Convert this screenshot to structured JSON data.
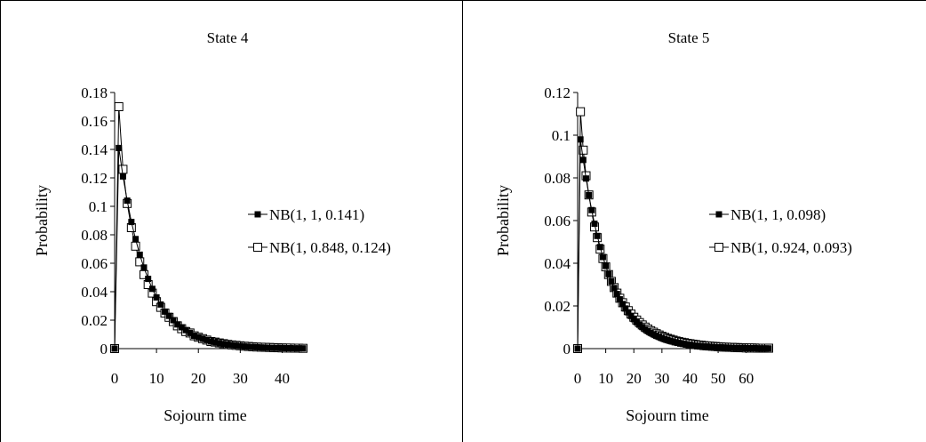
{
  "chart_data": [
    {
      "type": "line",
      "title": "State 4",
      "xlabel": "Sojourn time",
      "ylabel": "Probability",
      "xlim": [
        0,
        45
      ],
      "ylim": [
        0,
        0.18
      ],
      "xticks": [
        "0",
        "10",
        "20",
        "30",
        "40"
      ],
      "yticks": [
        "0",
        "0.02",
        "0.04",
        "0.06",
        "0.08",
        "0.1",
        "0.12",
        "0.14",
        "0.16",
        "0.18"
      ],
      "legend": "right",
      "grid": false,
      "series": [
        {
          "name": "NB(1, 1, 0.141)",
          "marker": "filled-square",
          "x": [
            0,
            1,
            2,
            3,
            4,
            5,
            6,
            7,
            8,
            9,
            10,
            11,
            12,
            13,
            14,
            15,
            16,
            17,
            18,
            19,
            20,
            21,
            22,
            23,
            24,
            25,
            26,
            27,
            28,
            29,
            30,
            31,
            32,
            33,
            34,
            35,
            36,
            37,
            38,
            39,
            40,
            41,
            42,
            43,
            44,
            45
          ],
          "y": [
            0,
            0.141,
            0.121,
            0.104,
            0.089,
            0.077,
            0.066,
            0.057,
            0.049,
            0.042,
            0.036,
            0.031,
            0.026,
            0.023,
            0.02,
            0.017,
            0.015,
            0.013,
            0.011,
            0.009,
            0.008,
            0.007,
            0.006,
            0.005,
            0.0044,
            0.0037,
            0.0032,
            0.0028,
            0.0024,
            0.0021,
            0.0018,
            0.0015,
            0.0013,
            0.0011,
            0.001,
            0.0008,
            0.0007,
            0.0006,
            0.0005,
            0.0005,
            0.0004,
            0.0003,
            0.0003,
            0.0002,
            0.0002,
            0.0002
          ]
        },
        {
          "name": "NB(1, 0.848, 0.124)",
          "marker": "open-square",
          "x": [
            0,
            1,
            2,
            3,
            4,
            5,
            6,
            7,
            8,
            9,
            10,
            11,
            12,
            13,
            14,
            15,
            16,
            17,
            18,
            19,
            20,
            21,
            22,
            23,
            24,
            25,
            26,
            27,
            28,
            29,
            30,
            31,
            32,
            33,
            34,
            35,
            36,
            37,
            38,
            39,
            40,
            41,
            42,
            43,
            44,
            45
          ],
          "y": [
            0,
            0.17,
            0.126,
            0.102,
            0.085,
            0.072,
            0.061,
            0.052,
            0.045,
            0.039,
            0.033,
            0.029,
            0.025,
            0.022,
            0.019,
            0.016,
            0.014,
            0.012,
            0.011,
            0.009,
            0.008,
            0.007,
            0.006,
            0.005,
            0.0046,
            0.004,
            0.0035,
            0.003,
            0.0026,
            0.0023,
            0.002,
            0.0017,
            0.0015,
            0.0013,
            0.0011,
            0.001,
            0.0009,
            0.0008,
            0.0007,
            0.0006,
            0.0005,
            0.0004,
            0.0004,
            0.0003,
            0.0003,
            0.0002
          ]
        }
      ]
    },
    {
      "type": "line",
      "title": "State 5",
      "xlabel": "Sojourn time",
      "ylabel": "Probability",
      "xlim": [
        0,
        68
      ],
      "ylim": [
        0,
        0.12
      ],
      "xticks": [
        "0",
        "10",
        "20",
        "30",
        "40",
        "50",
        "60"
      ],
      "yticks": [
        "0",
        "0.02",
        "0.04",
        "0.06",
        "0.08",
        "0.1",
        "0.12"
      ],
      "legend": "right",
      "grid": false,
      "series": [
        {
          "name": "NB(1, 1, 0.098)",
          "marker": "filled-square",
          "x": [
            0,
            1,
            2,
            3,
            4,
            5,
            6,
            7,
            8,
            9,
            10,
            11,
            12,
            13,
            14,
            15,
            16,
            17,
            18,
            19,
            20,
            21,
            22,
            23,
            24,
            25,
            26,
            27,
            28,
            29,
            30,
            31,
            32,
            33,
            34,
            35,
            36,
            37,
            38,
            39,
            40,
            41,
            42,
            43,
            44,
            45,
            46,
            47,
            48,
            49,
            50,
            51,
            52,
            53,
            54,
            55,
            56,
            57,
            58,
            59,
            60,
            61,
            62,
            63,
            64,
            65,
            66,
            67,
            68
          ],
          "y": [
            0,
            0.098,
            0.0884,
            0.0797,
            0.0719,
            0.0649,
            0.0585,
            0.0528,
            0.0476,
            0.0429,
            0.0387,
            0.0349,
            0.0315,
            0.0284,
            0.0256,
            0.0231,
            0.0209,
            0.0188,
            0.017,
            0.0153,
            0.0138,
            0.0124,
            0.0112,
            0.0101,
            0.0091,
            0.0082,
            0.0074,
            0.0067,
            0.006,
            0.0055,
            0.0049,
            0.0044,
            0.004,
            0.0036,
            0.0033,
            0.003,
            0.0027,
            0.0024,
            0.0022,
            0.0019,
            0.0018,
            0.0016,
            0.0014,
            0.0013,
            0.0012,
            0.0011,
            0.001,
            0.0009,
            0.0008,
            0.0007,
            0.0006,
            0.0006,
            0.0005,
            0.0005,
            0.0004,
            0.0004,
            0.0003,
            0.0003,
            0.0003,
            0.0003,
            0.0002,
            0.0002,
            0.0002,
            0.0002,
            0.0001,
            0.0001,
            0.0001,
            0.0001,
            0.0001
          ]
        },
        {
          "name": "NB(1, 0.924, 0.093)",
          "marker": "open-square",
          "x": [
            0,
            1,
            2,
            3,
            4,
            5,
            6,
            7,
            8,
            9,
            10,
            11,
            12,
            13,
            14,
            15,
            16,
            17,
            18,
            19,
            20,
            21,
            22,
            23,
            24,
            25,
            26,
            27,
            28,
            29,
            30,
            31,
            32,
            33,
            34,
            35,
            36,
            37,
            38,
            39,
            40,
            41,
            42,
            43,
            44,
            45,
            46,
            47,
            48,
            49,
            50,
            51,
            52,
            53,
            54,
            55,
            56,
            57,
            58,
            59,
            60,
            61,
            62,
            63,
            64,
            65,
            66,
            67,
            68
          ],
          "y": [
            0,
            0.111,
            0.093,
            0.081,
            0.072,
            0.064,
            0.057,
            0.052,
            0.0466,
            0.0422,
            0.0383,
            0.0347,
            0.0315,
            0.0286,
            0.026,
            0.0236,
            0.0215,
            0.0195,
            0.0178,
            0.0162,
            0.0147,
            0.0134,
            0.0122,
            0.0111,
            0.0101,
            0.0092,
            0.0084,
            0.0077,
            0.007,
            0.0064,
            0.0058,
            0.0053,
            0.0048,
            0.0044,
            0.004,
            0.0036,
            0.0033,
            0.003,
            0.0028,
            0.0025,
            0.0023,
            0.0021,
            0.0019,
            0.0017,
            0.0016,
            0.0014,
            0.0013,
            0.0012,
            0.0011,
            0.001,
            0.0009,
            0.0008,
            0.0007,
            0.0007,
            0.0006,
            0.0006,
            0.0005,
            0.0005,
            0.0004,
            0.0004,
            0.0003,
            0.0003,
            0.0003,
            0.0003,
            0.0002,
            0.0002,
            0.0002,
            0.0002,
            0.0002
          ]
        }
      ]
    }
  ]
}
